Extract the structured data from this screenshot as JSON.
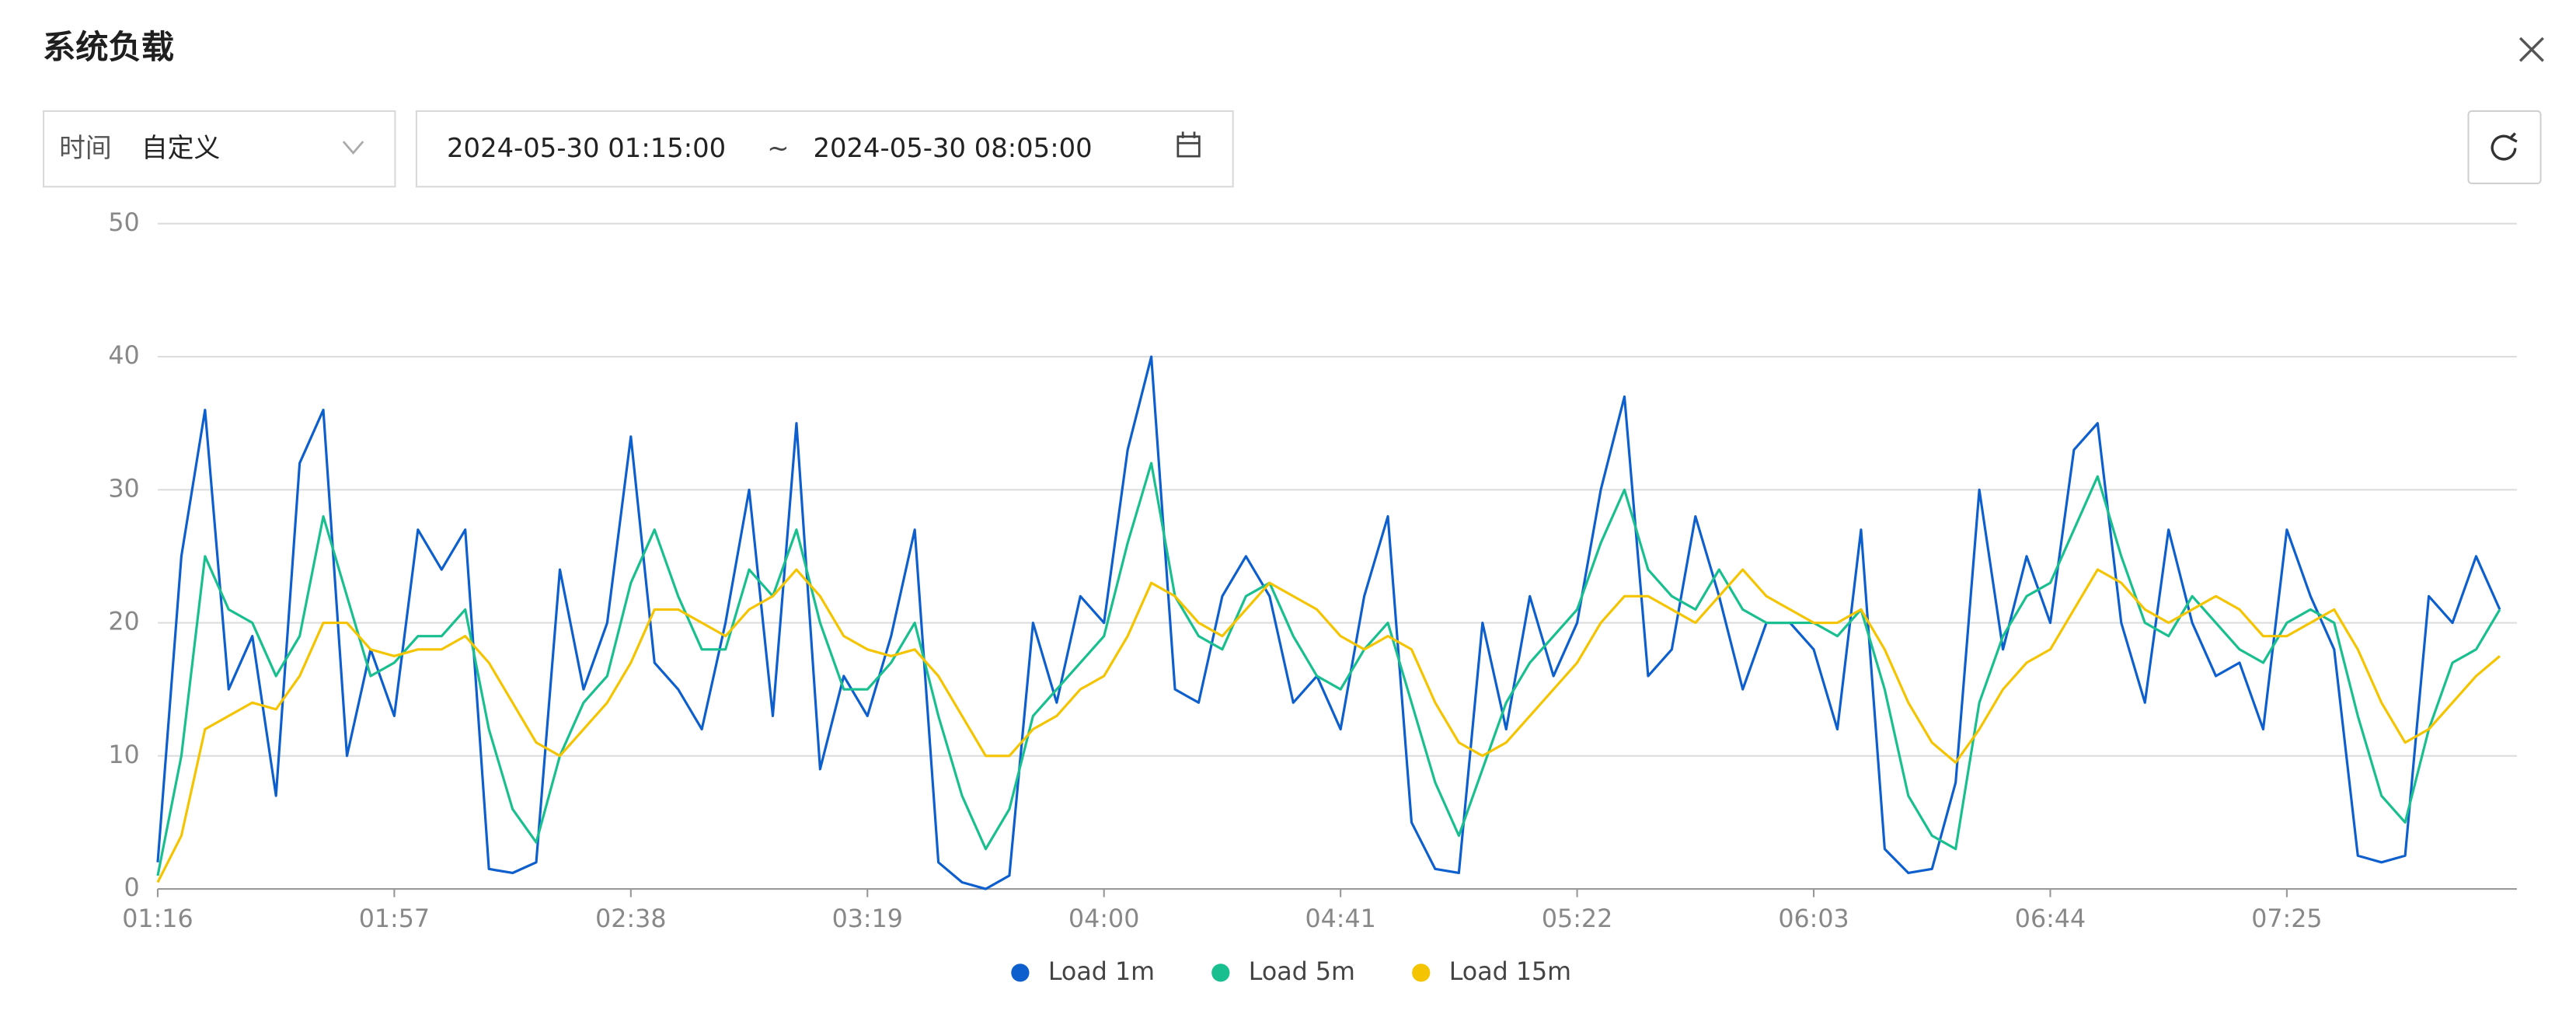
{
  "header": {
    "title": "系统负载"
  },
  "filters": {
    "time_label": "时间",
    "time_mode": "自定义",
    "start": "2024-05-30 01:15:00",
    "separator": "~",
    "end": "2024-05-30 08:05:00"
  },
  "chart_data": {
    "type": "line",
    "categories": [
      "01:16",
      null,
      null,
      null,
      null,
      null,
      null,
      null,
      null,
      null,
      "01:57",
      null,
      null,
      null,
      null,
      null,
      null,
      null,
      null,
      null,
      "02:38",
      null,
      null,
      null,
      null,
      null,
      null,
      null,
      null,
      null,
      "03:19",
      null,
      null,
      null,
      null,
      null,
      null,
      null,
      null,
      null,
      "04:00",
      null,
      null,
      null,
      null,
      null,
      null,
      null,
      null,
      null,
      "04:41",
      null,
      null,
      null,
      null,
      null,
      null,
      null,
      null,
      null,
      "05:22",
      null,
      null,
      null,
      null,
      null,
      null,
      null,
      null,
      null,
      "06:03",
      null,
      null,
      null,
      null,
      null,
      null,
      null,
      null,
      null,
      "06:44",
      null,
      null,
      null,
      null,
      null,
      null,
      null,
      null,
      null,
      "07:25",
      null,
      null,
      null,
      null,
      null,
      null,
      null,
      null,
      null
    ],
    "series": [
      {
        "name": "Load 1m",
        "color": "#0e5fce",
        "values": [
          2,
          25,
          36,
          15,
          19,
          7,
          32,
          36,
          10,
          18,
          13,
          27,
          24,
          27,
          1.5,
          1.2,
          2,
          24,
          15,
          20,
          34,
          17,
          15,
          12,
          20,
          30,
          13,
          35,
          9,
          16,
          13,
          19,
          27,
          2,
          0.5,
          0,
          1,
          20,
          14,
          22,
          20,
          33,
          40,
          15,
          14,
          22,
          25,
          22,
          14,
          16,
          12,
          22,
          28,
          5,
          1.5,
          1.2,
          20,
          12,
          22,
          16,
          20,
          30,
          37,
          16,
          18,
          28,
          22,
          15,
          20,
          20,
          18,
          12,
          27,
          3,
          1.2,
          1.5,
          8,
          30,
          18,
          25,
          20,
          33,
          35,
          20,
          14,
          27,
          20,
          16,
          17,
          12,
          27,
          22,
          18,
          2.5,
          2,
          2.5,
          22,
          20,
          25,
          21
        ]
      },
      {
        "name": "Load 5m",
        "color": "#19bf8e",
        "values": [
          1,
          10,
          25,
          21,
          20,
          16,
          19,
          28,
          22,
          16,
          17,
          19,
          19,
          21,
          12,
          6,
          3.5,
          10,
          14,
          16,
          23,
          27,
          22,
          18,
          18,
          24,
          22,
          27,
          20,
          15,
          15,
          17,
          20,
          13,
          7,
          3,
          6,
          13,
          15,
          17,
          19,
          26,
          32,
          22,
          19,
          18,
          22,
          23,
          19,
          16,
          15,
          18,
          20,
          14,
          8,
          4,
          9,
          14,
          17,
          19,
          21,
          26,
          30,
          24,
          22,
          21,
          24,
          21,
          20,
          20,
          20,
          19,
          21,
          15,
          7,
          4,
          3,
          14,
          19,
          22,
          23,
          27,
          31,
          25,
          20,
          19,
          22,
          20,
          18,
          17,
          20,
          21,
          20,
          13,
          7,
          5,
          12,
          17,
          18,
          21
        ]
      },
      {
        "name": "Load 15m",
        "color": "#f5c400",
        "values": [
          0.5,
          4,
          12,
          13,
          14,
          13.5,
          16,
          20,
          20,
          18,
          17.5,
          18,
          18,
          19,
          17,
          14,
          11,
          10,
          12,
          14,
          17,
          21,
          21,
          20,
          19,
          21,
          22,
          24,
          22,
          19,
          18,
          17.5,
          18,
          16,
          13,
          10,
          10,
          12,
          13,
          15,
          16,
          19,
          23,
          22,
          20,
          19,
          21,
          23,
          22,
          21,
          19,
          18,
          19,
          18,
          14,
          11,
          10,
          11,
          13,
          15,
          17,
          20,
          22,
          22,
          21,
          20,
          22,
          24,
          22,
          21,
          20,
          20,
          21,
          18,
          14,
          11,
          9.5,
          12,
          15,
          17,
          18,
          21,
          24,
          23,
          21,
          20,
          21,
          22,
          21,
          19,
          19,
          20,
          21,
          18,
          14,
          11,
          12,
          14,
          16,
          17.5
        ]
      }
    ],
    "ylim": [
      0,
      50
    ],
    "yticks": [
      0,
      10,
      20,
      30,
      40,
      50
    ],
    "grid": true
  }
}
